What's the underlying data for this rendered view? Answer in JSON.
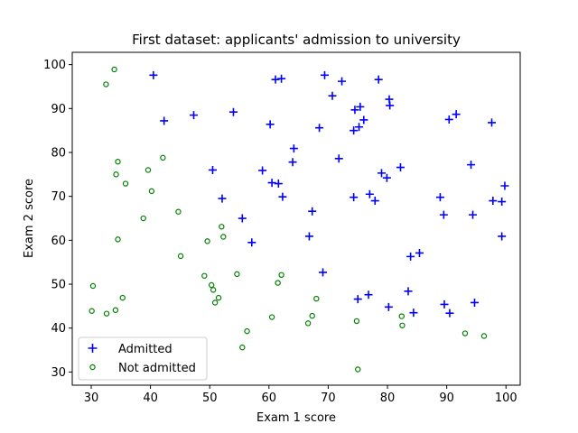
{
  "chart_data": {
    "type": "scatter",
    "title": "First dataset: applicants' admission to university",
    "xlabel": "Exam 1 score",
    "ylabel": "Exam 2 score",
    "xlim": [
      26.8,
      102.4
    ],
    "ylim": [
      27.0,
      102.8
    ],
    "xticks": [
      30,
      40,
      50,
      60,
      70,
      80,
      90,
      100
    ],
    "yticks": [
      30,
      40,
      50,
      60,
      70,
      80,
      90,
      100
    ],
    "grid": false,
    "legend_position": "lower-left",
    "series": [
      {
        "name": "Admitted",
        "marker": "plus",
        "color": "#0000ff",
        "points": [
          [
            40.5,
            97.6
          ],
          [
            42.3,
            87.2
          ],
          [
            47.3,
            88.5
          ],
          [
            50.5,
            76.0
          ],
          [
            52.1,
            69.5
          ],
          [
            54.0,
            89.2
          ],
          [
            55.5,
            65.0
          ],
          [
            57.1,
            59.5
          ],
          [
            58.9,
            75.9
          ],
          [
            60.2,
            86.4
          ],
          [
            60.5,
            73.1
          ],
          [
            61.1,
            96.6
          ],
          [
            61.6,
            72.9
          ],
          [
            62.1,
            96.8
          ],
          [
            62.3,
            69.9
          ],
          [
            64.2,
            80.9
          ],
          [
            64.0,
            77.8
          ],
          [
            66.8,
            60.9
          ],
          [
            67.3,
            66.6
          ],
          [
            68.5,
            85.6
          ],
          [
            69.1,
            52.7
          ],
          [
            69.4,
            97.6
          ],
          [
            70.7,
            92.9
          ],
          [
            71.8,
            78.6
          ],
          [
            72.3,
            96.2
          ],
          [
            74.3,
            69.8
          ],
          [
            74.3,
            85.0
          ],
          [
            74.5,
            89.7
          ],
          [
            75.0,
            46.6
          ],
          [
            75.2,
            85.8
          ],
          [
            75.4,
            90.4
          ],
          [
            76.0,
            87.4
          ],
          [
            76.8,
            47.6
          ],
          [
            77.0,
            70.5
          ],
          [
            77.9,
            69.0
          ],
          [
            78.5,
            96.6
          ],
          [
            79.0,
            75.3
          ],
          [
            79.9,
            74.2
          ],
          [
            80.2,
            44.8
          ],
          [
            80.3,
            92.1
          ],
          [
            80.4,
            90.7
          ],
          [
            82.2,
            76.6
          ],
          [
            83.5,
            48.4
          ],
          [
            83.9,
            56.3
          ],
          [
            84.4,
            43.5
          ],
          [
            85.4,
            57.1
          ],
          [
            88.9,
            69.8
          ],
          [
            89.5,
            65.8
          ],
          [
            89.6,
            45.4
          ],
          [
            90.4,
            87.5
          ],
          [
            90.5,
            43.4
          ],
          [
            91.6,
            88.7
          ],
          [
            94.1,
            77.2
          ],
          [
            94.4,
            65.8
          ],
          [
            94.7,
            45.8
          ],
          [
            97.6,
            86.8
          ],
          [
            97.8,
            69.0
          ],
          [
            99.3,
            68.8
          ],
          [
            99.3,
            60.9
          ],
          [
            99.8,
            72.4
          ]
        ]
      },
      {
        "name": "Not admitted",
        "marker": "circle",
        "color": "#008000",
        "points": [
          [
            30.1,
            43.9
          ],
          [
            30.3,
            49.6
          ],
          [
            32.5,
            95.5
          ],
          [
            32.6,
            43.3
          ],
          [
            33.9,
            98.9
          ],
          [
            34.1,
            44.1
          ],
          [
            34.2,
            75.0
          ],
          [
            34.5,
            77.9
          ],
          [
            34.5,
            60.2
          ],
          [
            35.3,
            46.9
          ],
          [
            35.8,
            72.9
          ],
          [
            38.8,
            65.0
          ],
          [
            39.6,
            76.0
          ],
          [
            40.2,
            71.2
          ],
          [
            42.1,
            78.8
          ],
          [
            44.7,
            66.5
          ],
          [
            45.1,
            56.4
          ],
          [
            49.1,
            51.9
          ],
          [
            49.6,
            59.8
          ],
          [
            50.3,
            49.8
          ],
          [
            50.6,
            48.7
          ],
          [
            50.9,
            45.8
          ],
          [
            51.5,
            46.9
          ],
          [
            52.0,
            63.1
          ],
          [
            52.3,
            60.8
          ],
          [
            54.6,
            52.3
          ],
          [
            55.5,
            35.6
          ],
          [
            56.3,
            39.3
          ],
          [
            60.5,
            42.5
          ],
          [
            61.5,
            50.3
          ],
          [
            62.1,
            52.1
          ],
          [
            66.6,
            41.1
          ],
          [
            67.3,
            42.8
          ],
          [
            68.0,
            46.7
          ],
          [
            74.8,
            41.6
          ],
          [
            75.0,
            30.6
          ],
          [
            82.4,
            42.7
          ],
          [
            82.5,
            40.6
          ],
          [
            93.1,
            38.8
          ],
          [
            96.3,
            38.2
          ]
        ]
      }
    ]
  }
}
